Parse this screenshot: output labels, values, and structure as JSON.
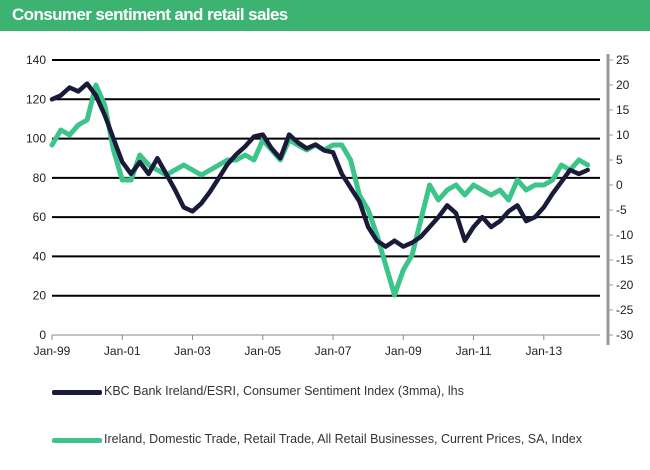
{
  "title": "Consumer sentiment and retail sales",
  "chart_data": {
    "type": "line",
    "x_ticks": [
      "Jan-99",
      "Jan-01",
      "Jan-03",
      "Jan-05",
      "Jan-07",
      "Jan-09",
      "Jan-11",
      "Jan-13"
    ],
    "y_left": {
      "ticks": [
        "0",
        "20",
        "40",
        "60",
        "80",
        "100",
        "120",
        "140"
      ],
      "ylim": [
        0,
        140
      ]
    },
    "y_right": {
      "ticks": [
        "-30",
        "-25",
        "-20",
        "-15",
        "-10",
        "-5",
        "0",
        "5",
        "10",
        "15",
        "20",
        "25"
      ],
      "ylim": [
        -30,
        25
      ]
    },
    "grid": true,
    "legend_position": "bottom",
    "colors": {
      "sentiment": "#1a1a3a",
      "retail": "#3cc48a",
      "title_bar": "#3cb371"
    },
    "series": [
      {
        "name": "KBC Bank Ireland/ESRI, Consumer Sentiment Index (3mma), lhs",
        "axis": "left",
        "points": [
          [
            "1999-01",
            120
          ],
          [
            "1999-04",
            122
          ],
          [
            "1999-07",
            126
          ],
          [
            "1999-10",
            124
          ],
          [
            "2000-01",
            128
          ],
          [
            "2000-04",
            122
          ],
          [
            "2000-07",
            112
          ],
          [
            "2000-10",
            100
          ],
          [
            "2001-01",
            88
          ],
          [
            "2001-04",
            82
          ],
          [
            "2001-07",
            88
          ],
          [
            "2001-10",
            82
          ],
          [
            "2002-01",
            90
          ],
          [
            "2002-04",
            82
          ],
          [
            "2002-07",
            74
          ],
          [
            "2002-10",
            65
          ],
          [
            "2003-01",
            63
          ],
          [
            "2003-04",
            67
          ],
          [
            "2003-07",
            73
          ],
          [
            "2003-10",
            80
          ],
          [
            "2004-01",
            87
          ],
          [
            "2004-04",
            92
          ],
          [
            "2004-07",
            96
          ],
          [
            "2004-10",
            101
          ],
          [
            "2005-01",
            102
          ],
          [
            "2005-04",
            95
          ],
          [
            "2005-07",
            90
          ],
          [
            "2005-10",
            102
          ],
          [
            "2006-01",
            98
          ],
          [
            "2006-04",
            95
          ],
          [
            "2006-07",
            97
          ],
          [
            "2006-10",
            94
          ],
          [
            "2007-01",
            93
          ],
          [
            "2007-04",
            82
          ],
          [
            "2007-07",
            75
          ],
          [
            "2007-10",
            68
          ],
          [
            "2008-01",
            55
          ],
          [
            "2008-04",
            48
          ],
          [
            "2008-07",
            45
          ],
          [
            "2008-10",
            48
          ],
          [
            "2009-01",
            45
          ],
          [
            "2009-04",
            47
          ],
          [
            "2009-07",
            50
          ],
          [
            "2009-10",
            55
          ],
          [
            "2010-01",
            60
          ],
          [
            "2010-04",
            66
          ],
          [
            "2010-07",
            62
          ],
          [
            "2010-10",
            48
          ],
          [
            "2011-01",
            55
          ],
          [
            "2011-04",
            60
          ],
          [
            "2011-07",
            55
          ],
          [
            "2011-10",
            58
          ],
          [
            "2012-01",
            63
          ],
          [
            "2012-04",
            66
          ],
          [
            "2012-07",
            58
          ],
          [
            "2012-10",
            60
          ],
          [
            "2013-01",
            65
          ],
          [
            "2013-04",
            72
          ],
          [
            "2013-07",
            78
          ],
          [
            "2013-10",
            84
          ],
          [
            "2014-01",
            82
          ],
          [
            "2014-04",
            84
          ]
        ]
      },
      {
        "name": "Ireland, Domestic Trade, Retail Trade, All Retail Businesses, Current Prices, SA, Index",
        "axis": "right",
        "points": [
          [
            "1999-01",
            8
          ],
          [
            "1999-04",
            11
          ],
          [
            "1999-07",
            10
          ],
          [
            "1999-10",
            12
          ],
          [
            "2000-01",
            13
          ],
          [
            "2000-04",
            20
          ],
          [
            "2000-07",
            16
          ],
          [
            "2000-10",
            7
          ],
          [
            "2001-01",
            1
          ],
          [
            "2001-04",
            1
          ],
          [
            "2001-07",
            6
          ],
          [
            "2001-10",
            4
          ],
          [
            "2002-01",
            3
          ],
          [
            "2002-04",
            2
          ],
          [
            "2002-07",
            3
          ],
          [
            "2002-10",
            4
          ],
          [
            "2003-01",
            3
          ],
          [
            "2003-04",
            2
          ],
          [
            "2003-07",
            3
          ],
          [
            "2003-10",
            4
          ],
          [
            "2004-01",
            5
          ],
          [
            "2004-04",
            5
          ],
          [
            "2004-07",
            6
          ],
          [
            "2004-10",
            5
          ],
          [
            "2005-01",
            9
          ],
          [
            "2005-04",
            7
          ],
          [
            "2005-07",
            5
          ],
          [
            "2005-10",
            9
          ],
          [
            "2006-01",
            8
          ],
          [
            "2006-04",
            7
          ],
          [
            "2006-07",
            8
          ],
          [
            "2006-10",
            7
          ],
          [
            "2007-01",
            8
          ],
          [
            "2007-04",
            8
          ],
          [
            "2007-07",
            5
          ],
          [
            "2007-10",
            -2
          ],
          [
            "2008-01",
            -5
          ],
          [
            "2008-04",
            -10
          ],
          [
            "2008-07",
            -16
          ],
          [
            "2008-10",
            -22
          ],
          [
            "2009-01",
            -17
          ],
          [
            "2009-04",
            -14
          ],
          [
            "2009-07",
            -7
          ],
          [
            "2009-10",
            0
          ],
          [
            "2010-01",
            -3
          ],
          [
            "2010-04",
            -1
          ],
          [
            "2010-07",
            0
          ],
          [
            "2010-10",
            -2
          ],
          [
            "2011-01",
            0
          ],
          [
            "2011-04",
            -1
          ],
          [
            "2011-07",
            -2
          ],
          [
            "2011-10",
            -1
          ],
          [
            "2012-01",
            -3
          ],
          [
            "2012-04",
            1
          ],
          [
            "2012-07",
            -1
          ],
          [
            "2012-10",
            0
          ],
          [
            "2013-01",
            0
          ],
          [
            "2013-04",
            1
          ],
          [
            "2013-07",
            4
          ],
          [
            "2013-10",
            3
          ],
          [
            "2014-01",
            5
          ],
          [
            "2014-04",
            4
          ]
        ]
      }
    ]
  }
}
